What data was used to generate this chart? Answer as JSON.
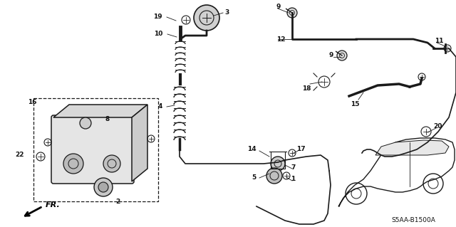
{
  "background_color": "#ffffff",
  "diagram_id": "S5AA-B1500A",
  "fr_label": "FR.",
  "line_color": "#1a1a1a",
  "text_color": "#111111",
  "font_size": 6.5
}
